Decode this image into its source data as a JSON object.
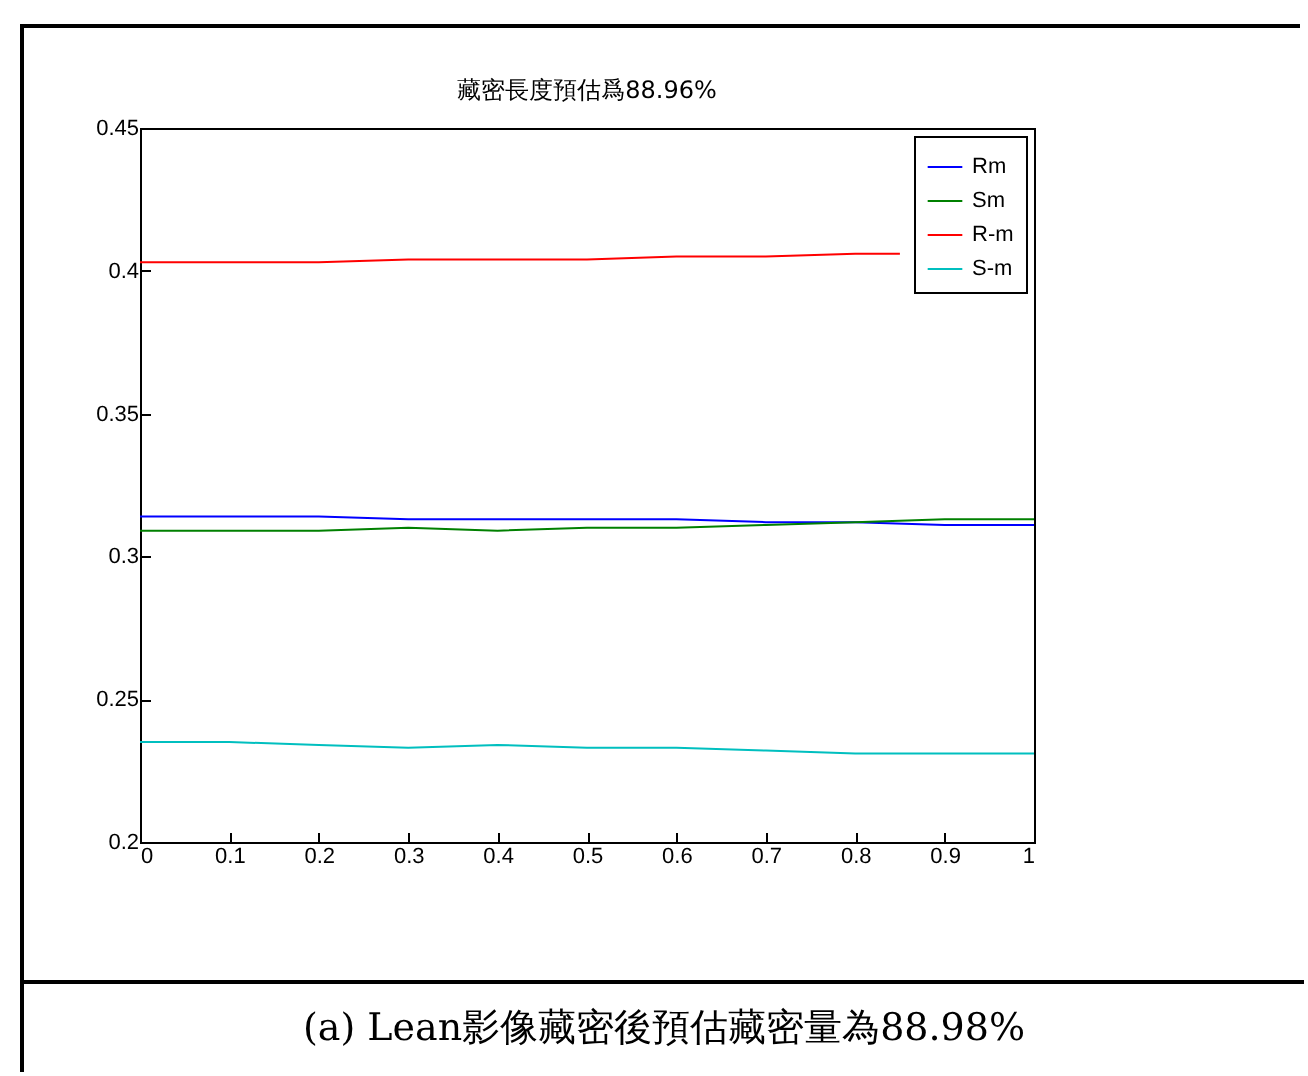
{
  "chart_data": {
    "type": "line",
    "title": "藏密長度預估爲88.96%",
    "x": [
      0,
      0.1,
      0.2,
      0.3,
      0.4,
      0.5,
      0.6,
      0.7,
      0.8,
      0.9,
      1
    ],
    "series": [
      {
        "name": "Rm",
        "color": "#0000ff",
        "values": [
          0.314,
          0.314,
          0.314,
          0.313,
          0.313,
          0.313,
          0.313,
          0.312,
          0.312,
          0.311,
          0.311
        ]
      },
      {
        "name": "Sm",
        "color": "#008000",
        "values": [
          0.309,
          0.309,
          0.309,
          0.31,
          0.309,
          0.31,
          0.31,
          0.311,
          0.312,
          0.313,
          0.313
        ]
      },
      {
        "name": "R-m",
        "color": "#ff0000",
        "x": [
          0,
          0.1,
          0.2,
          0.3,
          0.4,
          0.5,
          0.6,
          0.7,
          0.8,
          0.85
        ],
        "values": [
          0.403,
          0.403,
          0.403,
          0.404,
          0.404,
          0.404,
          0.405,
          0.405,
          0.406,
          0.406
        ]
      },
      {
        "name": "S-m",
        "color": "#00bfbf",
        "values": [
          0.235,
          0.235,
          0.234,
          0.233,
          0.234,
          0.233,
          0.233,
          0.232,
          0.231,
          0.231,
          0.231
        ]
      }
    ],
    "xlim": [
      0,
      1
    ],
    "xticks": [
      0,
      0.1,
      0.2,
      0.3,
      0.4,
      0.5,
      0.6,
      0.7,
      0.8,
      0.9,
      1
    ],
    "ylim": [
      0.2,
      0.45
    ],
    "yticks": [
      0.2,
      0.25,
      0.3,
      0.35,
      0.4,
      0.45
    ],
    "grid": false,
    "legend": "top right",
    "line_style": "solid",
    "annotations": [
      "(a) Lean影像藏密後預估藏密量為88.98%"
    ]
  }
}
